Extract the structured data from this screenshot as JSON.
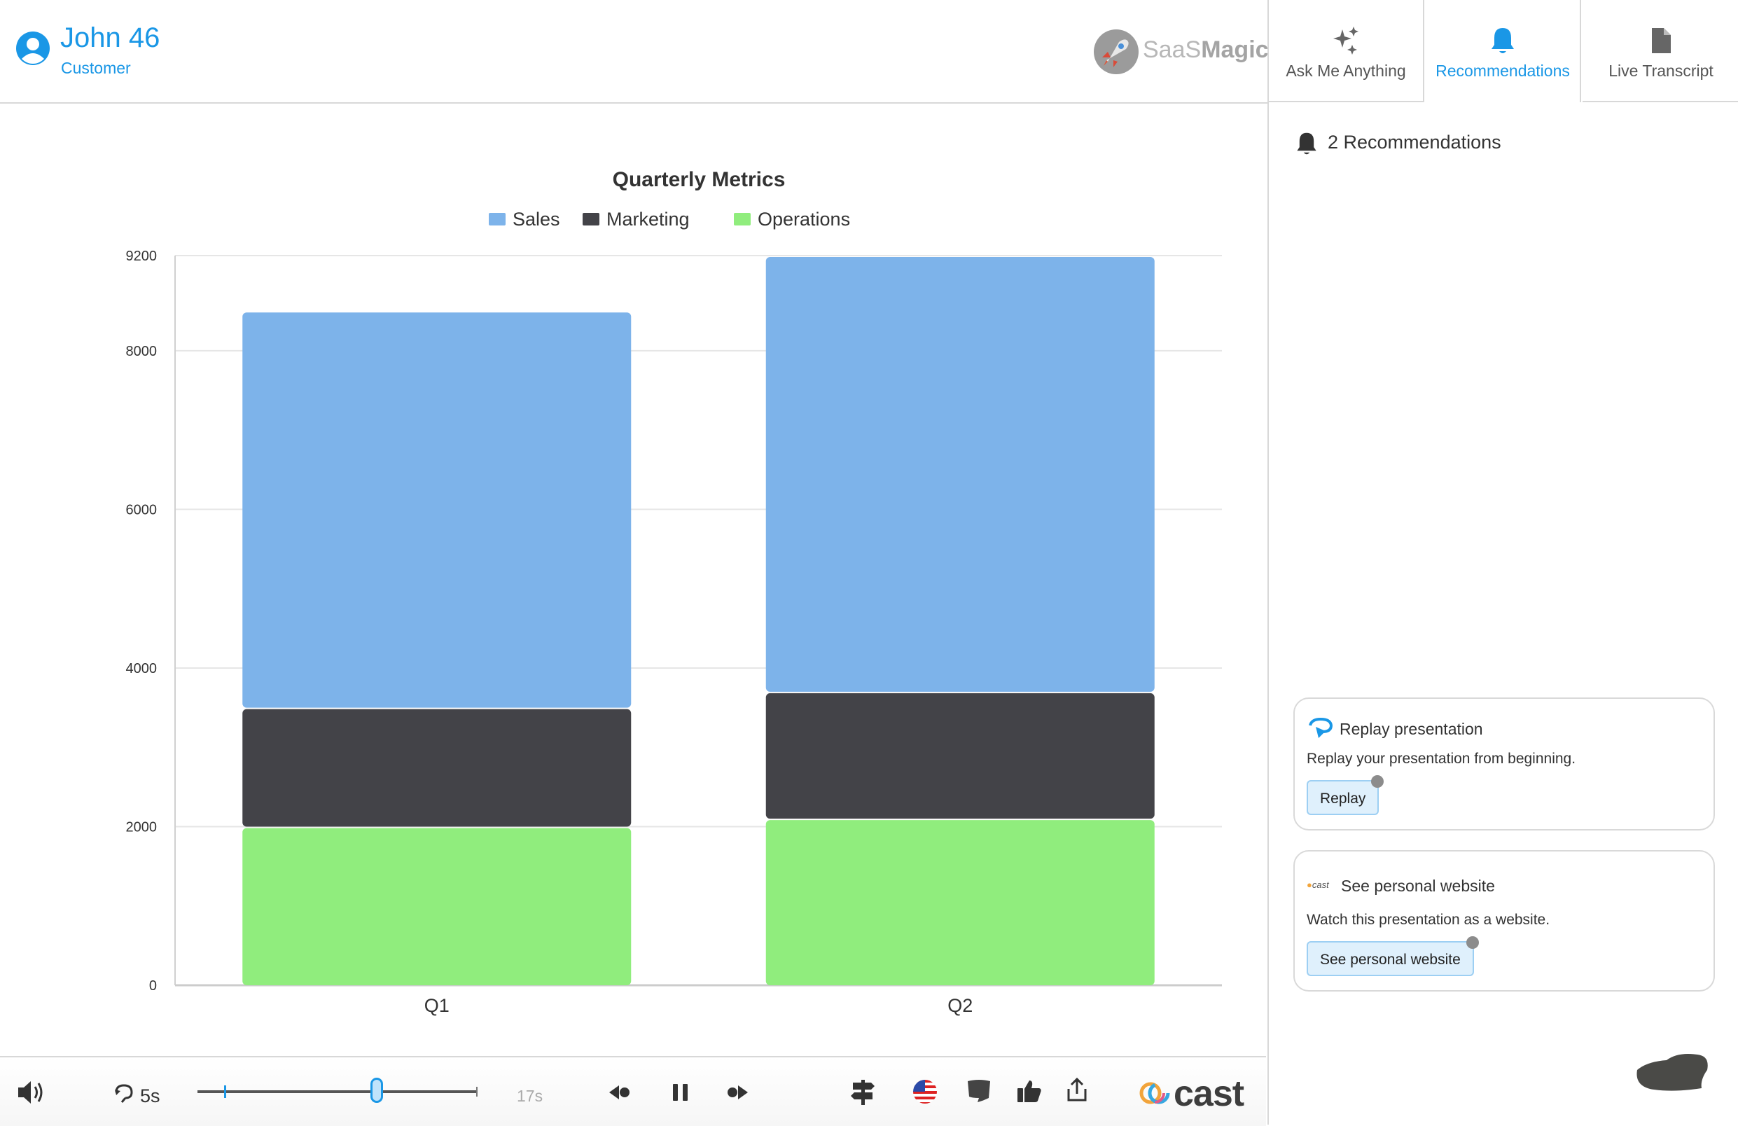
{
  "header": {
    "user_name": "John 46",
    "user_role": "Customer",
    "brand_name_light": "SaaS",
    "brand_name_bold": "Magic"
  },
  "tabs": [
    {
      "label": "Ask Me Anything",
      "icon": "sparkles-icon",
      "active": false
    },
    {
      "label": "Recommendations",
      "icon": "bell-icon",
      "active": true
    },
    {
      "label": "Live Transcript",
      "icon": "document-icon",
      "active": false
    }
  ],
  "recommendations": {
    "count_label": "2 Recommendations",
    "cards": [
      {
        "title": "Replay presentation",
        "description": "Replay your presentation from beginning.",
        "button": "Replay",
        "icon": "replay-icon"
      },
      {
        "title": "See personal website",
        "description": "Watch this presentation as a website.",
        "button": "See personal website",
        "icon": "cast-logo-icon",
        "icon_text": "cast"
      }
    ]
  },
  "colors": {
    "accent": "#1a97e6",
    "sales": "#7db3ea",
    "marketing": "#434348",
    "operations": "#90ed7d"
  },
  "chart_data": {
    "type": "bar",
    "stacked": true,
    "title": "Quarterly Metrics",
    "categories": [
      "Q1",
      "Q2"
    ],
    "series": [
      {
        "name": "Operations",
        "values": [
          2000,
          2100
        ]
      },
      {
        "name": "Marketing",
        "values": [
          1500,
          1600
        ]
      },
      {
        "name": "Sales",
        "values": [
          5000,
          5500
        ]
      }
    ],
    "legend_order": [
      "Sales",
      "Marketing",
      "Operations"
    ],
    "ylim": [
      0,
      9200
    ],
    "yticks": [
      "0",
      "2000",
      "4000",
      "6000",
      "8000",
      "9200"
    ],
    "ytick_values": [
      0,
      2000,
      4000,
      6000,
      8000,
      9200
    ],
    "grid": true,
    "legend_position": "top"
  },
  "player": {
    "skip_label": "5s",
    "time_label": "17s",
    "progress": 0.64,
    "brand": "cast"
  }
}
